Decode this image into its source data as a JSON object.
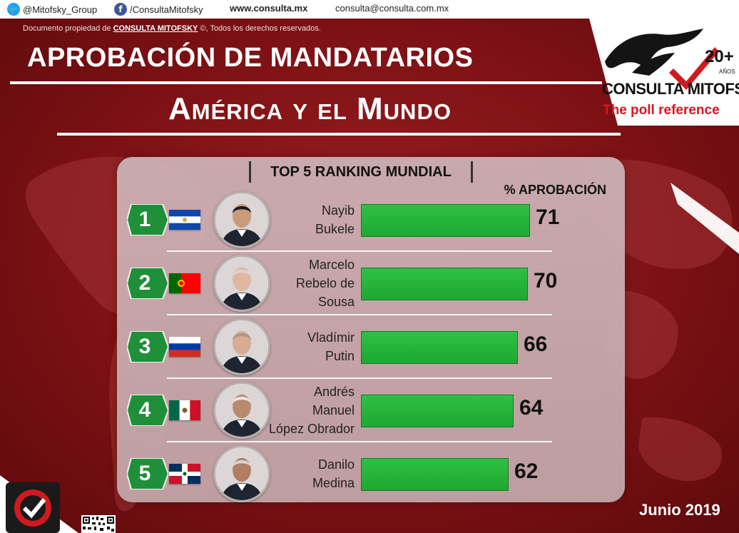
{
  "header": {
    "twitter": "@Mitofsky_Group",
    "facebook": "/ConsultaMitofsky",
    "website": "www.consulta.mx",
    "email": "consulta@consulta.com.mx",
    "copyright_prefix": "Documento propiedad de",
    "copyright_brand": "CONSULTA MITOFSKY",
    "copyright_suffix": "©, Todos los derechos reservados.",
    "title_line1": "APROBACIÓN DE MANDATARIOS",
    "title_line2": "América y el Mundo"
  },
  "logo": {
    "name": "CONSULTA MITOFSKY",
    "tagline": "The poll reference",
    "years": "20+",
    "years_sub": "AÑOS"
  },
  "icons": {
    "twitter": "twitter-icon",
    "facebook": "facebook-icon"
  },
  "colors": {
    "background": "#7d1114",
    "bar": "#22b03a",
    "badge": "#1f8f3a",
    "brand_red": "#d11920"
  },
  "footer": {
    "date": "Junio 2019"
  },
  "chart_data": {
    "type": "bar",
    "title": "TOP 5 RANKING MUNDIAL",
    "value_header": "% APROBACIÓN",
    "orientation": "horizontal",
    "xlim": [
      0,
      100
    ],
    "grid": false,
    "legend": "none",
    "items": [
      {
        "rank": "1",
        "name": [
          "Nayib",
          "Bukele"
        ],
        "country": "El Salvador",
        "value": 71
      },
      {
        "rank": "2",
        "name": [
          "Marcelo",
          "Rebelo de",
          "Sousa"
        ],
        "country": "Portugal",
        "value": 70
      },
      {
        "rank": "3",
        "name": [
          "Vladímir",
          "Putin"
        ],
        "country": "Rusia",
        "value": 66
      },
      {
        "rank": "4",
        "name": [
          "Andrés",
          "Manuel",
          "López Obrador"
        ],
        "country": "México",
        "value": 64
      },
      {
        "rank": "5",
        "name": [
          "Danilo",
          "Medina"
        ],
        "country": "República Dominicana",
        "value": 62
      }
    ]
  }
}
